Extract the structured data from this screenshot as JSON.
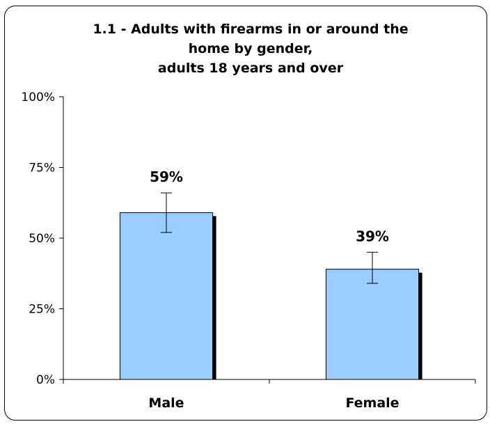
{
  "chart_data": {
    "type": "bar",
    "title_lines": [
      "1.1 - Adults with firearms in or around the",
      "home by gender,",
      "adults 18 years and over"
    ],
    "categories": [
      "Male",
      "Female"
    ],
    "values": [
      59,
      39
    ],
    "data_labels": [
      "59%",
      "39%"
    ],
    "error_bars": [
      {
        "low": 52,
        "high": 66
      },
      {
        "low": 34,
        "high": 45
      }
    ],
    "ylim": [
      0,
      100
    ],
    "yticks": [
      0,
      25,
      50,
      75,
      100
    ],
    "ytick_labels": [
      "0%",
      "25%",
      "50%",
      "75%",
      "100%"
    ],
    "grid": false,
    "legend": "none",
    "colors": {
      "bar_fill": "#99ccff",
      "bar_edge": "#000000",
      "bar_shadow": "#000000",
      "axis": "#000000"
    }
  }
}
